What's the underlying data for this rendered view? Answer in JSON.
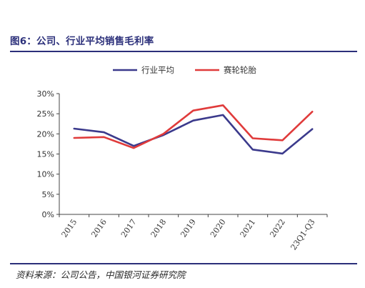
{
  "header": {
    "title": "图6：公司、行业平均销售毛利率"
  },
  "footer": {
    "source": "资料来源：公司公告，中国银河证券研究院"
  },
  "chart_data": {
    "type": "line",
    "categories": [
      "2015",
      "2016",
      "2017",
      "2018",
      "2019",
      "2020",
      "2021",
      "2022",
      "23Q1-Q3"
    ],
    "series": [
      {
        "name": "行业平均",
        "color": "#3b3a8c",
        "values": [
          21.3,
          20.4,
          17.0,
          19.7,
          23.3,
          24.7,
          16.1,
          15.1,
          21.2
        ]
      },
      {
        "name": "赛轮轮胎",
        "color": "#e03b3b",
        "values": [
          19.0,
          19.2,
          16.5,
          20.0,
          25.8,
          27.1,
          18.9,
          18.4,
          25.5
        ]
      }
    ],
    "y_ticks": [
      "0%",
      "5%",
      "10%",
      "15%",
      "20%",
      "25%",
      "30%"
    ],
    "ylim": [
      0,
      30
    ],
    "grid": false,
    "legend_position": "top"
  }
}
